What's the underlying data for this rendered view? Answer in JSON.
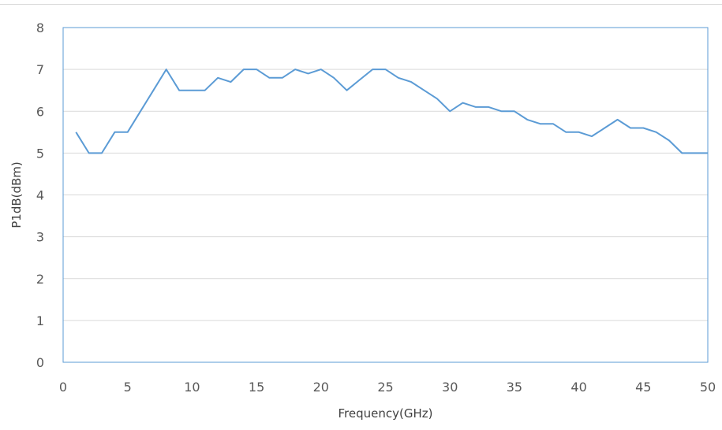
{
  "chart_data": {
    "type": "line",
    "title": "",
    "xlabel": "Frequency(GHz)",
    "ylabel": "P1dB(dBm)",
    "xlim": [
      0,
      50
    ],
    "ylim": [
      0,
      8
    ],
    "x_ticks": [
      0,
      5,
      10,
      15,
      20,
      25,
      30,
      35,
      40,
      45,
      50
    ],
    "y_ticks": [
      0,
      1,
      2,
      3,
      4,
      5,
      6,
      7,
      8
    ],
    "grid": "horizontal",
    "legend": "none",
    "line_color": "#5b9bd5",
    "series": [
      {
        "x": [
          1,
          2,
          3,
          4,
          5,
          6,
          7,
          8,
          9,
          10,
          11,
          12,
          13,
          14,
          15,
          16,
          17,
          18,
          19,
          20,
          21,
          22,
          23,
          24,
          25,
          26,
          27,
          28,
          29,
          30,
          31,
          32,
          33,
          34,
          35,
          36,
          37,
          38,
          39,
          40,
          41,
          42,
          43,
          44,
          45,
          46,
          47,
          48,
          49,
          50
        ],
        "values": [
          5.5,
          5.0,
          5.0,
          5.5,
          5.5,
          6.0,
          6.5,
          7.0,
          6.5,
          6.5,
          6.5,
          6.8,
          6.7,
          7.0,
          7.0,
          6.8,
          6.8,
          7.0,
          6.9,
          7.0,
          6.8,
          6.5,
          6.75,
          7.0,
          7.0,
          6.8,
          6.7,
          6.5,
          6.3,
          6.0,
          6.2,
          6.1,
          6.1,
          6.0,
          6.0,
          5.8,
          5.7,
          5.7,
          5.5,
          5.5,
          5.4,
          5.6,
          5.8,
          5.6,
          5.6,
          5.5,
          5.3,
          5.0,
          5.0,
          5.0
        ]
      }
    ]
  }
}
